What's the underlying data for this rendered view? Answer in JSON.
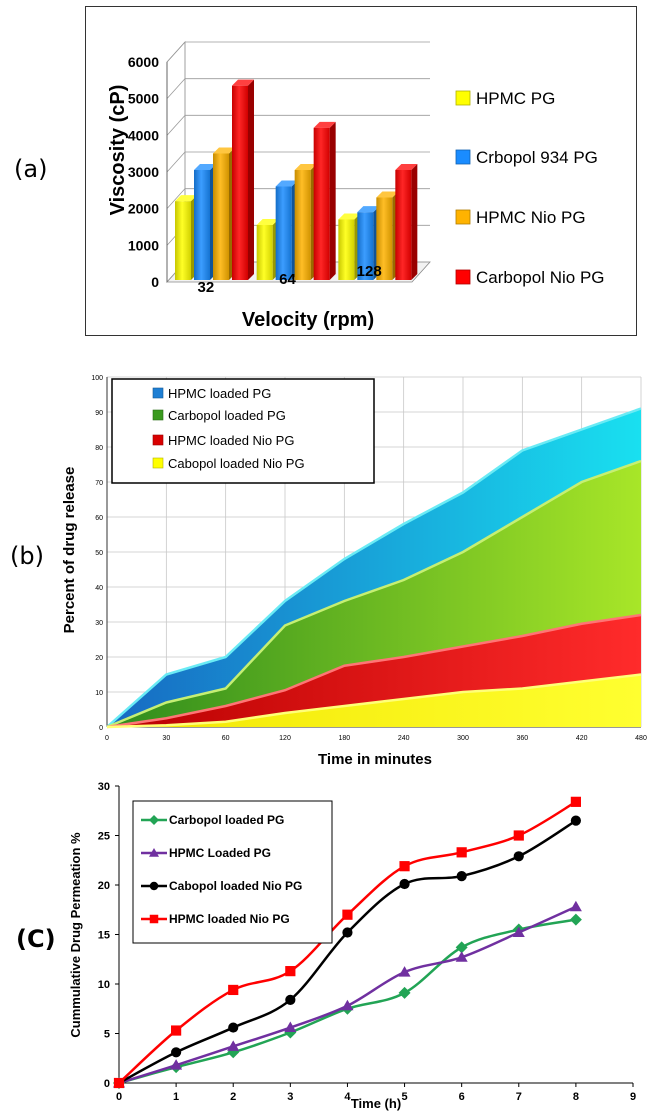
{
  "panels": {
    "a": {
      "letter": "(a)"
    },
    "b": {
      "letter": "(b)"
    },
    "c": {
      "letter": "(C)"
    }
  },
  "chart_data": [
    {
      "type": "bar",
      "id": "a",
      "style": "3d-clustered-bar",
      "xlabel": "Velocity (rpm)",
      "ylabel": "Viscosity (cP)",
      "ylim": [
        0,
        6000
      ],
      "yticks": [
        0,
        1000,
        2000,
        3000,
        4000,
        5000,
        6000
      ],
      "categories": [
        "32",
        "64",
        "128"
      ],
      "legend_position": "right",
      "series": [
        {
          "name": "HPMC PG",
          "color": "#ffff00",
          "values": [
            2150,
            1500,
            1650
          ]
        },
        {
          "name": "Crbopol 934 PG",
          "color": "#1a8cff",
          "values": [
            3000,
            2550,
            1850
          ]
        },
        {
          "name": "HPMC Nio PG",
          "color": "#ffb300",
          "values": [
            3450,
            3000,
            2250
          ]
        },
        {
          "name": "Carbopol Nio PG",
          "color": "#ff0000",
          "values": [
            5300,
            4150,
            3000
          ]
        }
      ]
    },
    {
      "type": "area",
      "id": "b",
      "stacked": false,
      "xlabel": "Time in minutes",
      "ylabel": "Percent  of drug release",
      "ylim": [
        0,
        100
      ],
      "yticks": [
        0,
        10,
        20,
        30,
        40,
        50,
        60,
        70,
        80,
        90,
        100
      ],
      "x": [
        "0",
        "30",
        "60",
        "120",
        "180",
        "240",
        "300",
        "360",
        "420",
        "480"
      ],
      "grid": true,
      "legend_position": "top-left",
      "series": [
        {
          "name": "HPMC loaded PG",
          "color": "#1e7fd4",
          "values": [
            0,
            15,
            20,
            36,
            48,
            58,
            67,
            79,
            85,
            91
          ]
        },
        {
          "name": "Carbopol loaded PG",
          "color": "#3a9a1e",
          "values": [
            0,
            7,
            11,
            29,
            36,
            42,
            50,
            60,
            70,
            76
          ]
        },
        {
          "name": "HPMC loaded Nio PG",
          "color": "#d90000",
          "values": [
            0,
            2.5,
            6,
            10.5,
            17.5,
            20,
            23,
            26,
            29.5,
            32
          ]
        },
        {
          "name": "Cabopol loaded Nio PG",
          "color": "#ffff00",
          "values": [
            0,
            0.5,
            1.5,
            4,
            6,
            8,
            10,
            11,
            13,
            15
          ]
        }
      ]
    },
    {
      "type": "line",
      "id": "c",
      "xlabel": "Time (h)",
      "ylabel": "Cummulative Drug Permeation %",
      "xlim": [
        0,
        9
      ],
      "xticks": [
        0,
        1,
        2,
        3,
        4,
        5,
        6,
        7,
        8,
        9
      ],
      "ylim": [
        0,
        30
      ],
      "yticks": [
        0,
        5,
        10,
        15,
        20,
        25,
        30
      ],
      "x": [
        0,
        1,
        2,
        3,
        4,
        5,
        6,
        7,
        8
      ],
      "legend_position": "top-left",
      "series": [
        {
          "name": "Carbopol loaded PG",
          "color": "#22a455",
          "marker": "diamond",
          "values": [
            0,
            1.6,
            3.1,
            5.1,
            7.5,
            9.1,
            13.7,
            15.5,
            16.5
          ]
        },
        {
          "name": "HPMC Loaded PG",
          "color": "#7030a0",
          "marker": "triangle",
          "values": [
            0,
            1.8,
            3.7,
            5.6,
            7.8,
            11.2,
            12.7,
            15.2,
            17.8
          ]
        },
        {
          "name": "Cabopol loaded Nio PG",
          "color": "#000000",
          "marker": "circle",
          "values": [
            0,
            3.1,
            5.6,
            8.4,
            15.2,
            20.1,
            20.9,
            22.9,
            26.5
          ]
        },
        {
          "name": "HPMC loaded Nio PG",
          "color": "#ff0000",
          "marker": "square",
          "values": [
            0,
            5.3,
            9.4,
            11.3,
            17.0,
            21.9,
            23.3,
            25.0,
            28.4
          ]
        }
      ]
    }
  ]
}
